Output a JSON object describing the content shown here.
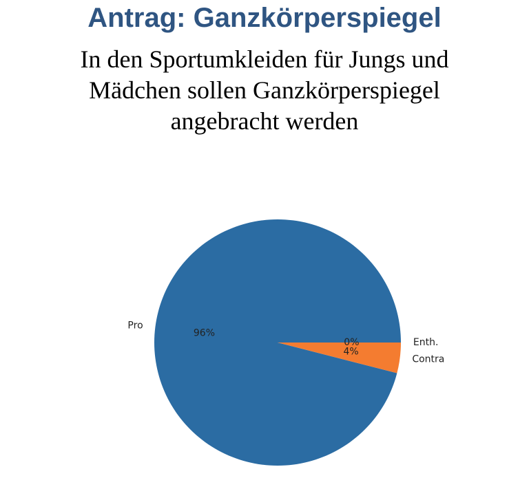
{
  "chart_data": {
    "type": "pie",
    "title": "Antrag: Ganzkörperspiegel",
    "subtitle": "In den Sportumkleiden für Jungs und Mädchen sollen Ganzkörperspiegel angebracht werden",
    "categories": [
      "Pro",
      "Contra",
      "Enth."
    ],
    "values": [
      96,
      4,
      0
    ],
    "value_labels": [
      "96%",
      "4%",
      "0%"
    ],
    "colors": [
      "#2b6ca3",
      "#f47c30",
      "#2ca02c"
    ]
  }
}
